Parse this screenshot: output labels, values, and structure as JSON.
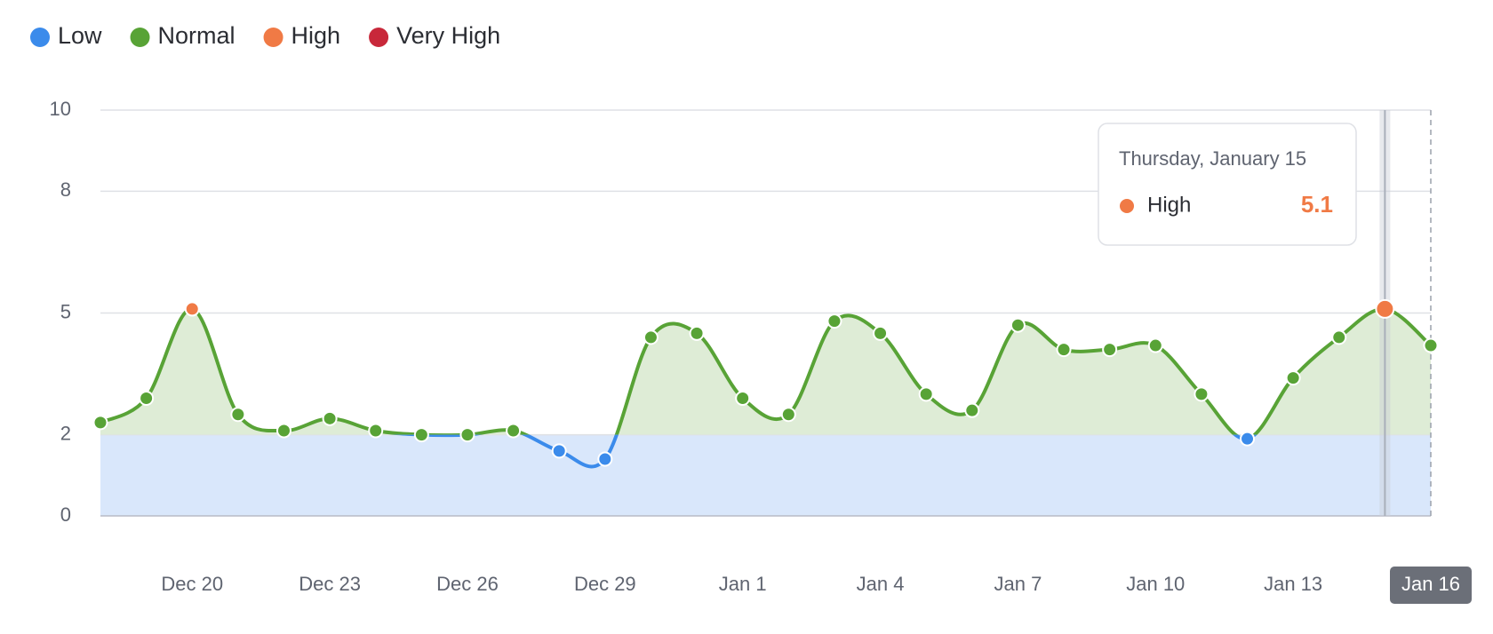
{
  "chart_data": {
    "type": "line",
    "zones": [
      {
        "name": "Low",
        "color": "#3b8beb",
        "fill": "#d9e7fb",
        "from": 0
      },
      {
        "name": "Normal",
        "color": "#58a336",
        "fill": "#deecd6",
        "from": 2
      },
      {
        "name": "High",
        "color": "#f07a45",
        "from": 5
      },
      {
        "name": "Very High",
        "color": "#c8283a",
        "from": 8
      }
    ],
    "categories": [
      null,
      null,
      "Dec 20",
      null,
      null,
      "Dec 23",
      null,
      null,
      "Dec 26",
      null,
      null,
      "Dec 29",
      null,
      null,
      "Jan 1",
      null,
      null,
      "Jan 4",
      null,
      null,
      "Jan 7",
      null,
      null,
      "Jan 10",
      null,
      null,
      "Jan 13",
      null,
      null,
      "Jan 16"
    ],
    "series": [
      {
        "values": [
          2.3,
          2.9,
          5.1,
          2.5,
          2.1,
          2.4,
          2.1,
          2.0,
          2.0,
          2.1,
          1.6,
          1.4,
          4.4,
          4.5,
          2.9,
          2.5,
          4.8,
          4.5,
          3.0,
          2.6,
          4.7,
          4.1,
          4.1,
          4.2,
          3.0,
          1.9,
          3.4,
          4.4,
          5.1,
          4.2
        ]
      }
    ],
    "ylim": [
      0,
      10
    ],
    "yticks": [
      0,
      2,
      5,
      8,
      10
    ],
    "grid": true,
    "tooltip": {
      "title": "Thursday, January 15"
    }
  }
}
